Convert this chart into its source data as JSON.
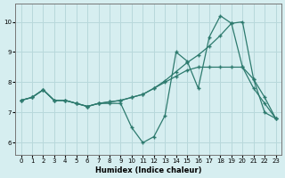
{
  "xlabel": "Humidex (Indice chaleur)",
  "x": [
    0,
    1,
    2,
    3,
    4,
    5,
    6,
    7,
    8,
    9,
    10,
    11,
    12,
    13,
    14,
    15,
    16,
    17,
    18,
    19,
    20,
    21,
    22,
    23
  ],
  "line1": [
    7.4,
    7.5,
    7.75,
    7.4,
    7.4,
    7.3,
    7.2,
    7.3,
    7.35,
    7.4,
    7.5,
    7.6,
    7.8,
    8.05,
    8.35,
    8.65,
    8.9,
    9.2,
    9.55,
    9.95,
    10.0,
    8.1,
    7.0,
    6.8
  ],
  "line2": [
    7.4,
    7.5,
    7.75,
    7.4,
    7.4,
    7.3,
    7.2,
    7.3,
    7.35,
    7.4,
    7.5,
    7.6,
    7.8,
    8.0,
    8.2,
    8.4,
    8.5,
    8.5,
    8.5,
    8.5,
    8.5,
    8.1,
    7.5,
    6.8
  ],
  "line3": [
    7.4,
    7.5,
    7.75,
    7.4,
    7.4,
    7.3,
    7.2,
    7.3,
    7.3,
    7.3,
    6.5,
    6.0,
    6.2,
    6.9,
    9.0,
    8.7,
    7.8,
    9.5,
    10.2,
    9.95,
    8.5,
    7.8,
    7.3,
    6.8
  ],
  "line_color": "#2d7a6e",
  "bg_color": "#d6eef0",
  "grid_color": "#b8d8db",
  "ylim": [
    5.6,
    10.6
  ],
  "xlim": [
    -0.5,
    23.5
  ],
  "yticks": [
    6,
    7,
    8,
    9,
    10
  ],
  "xticks": [
    0,
    1,
    2,
    3,
    4,
    5,
    6,
    7,
    8,
    9,
    10,
    11,
    12,
    13,
    14,
    15,
    16,
    17,
    18,
    19,
    20,
    21,
    22,
    23
  ]
}
